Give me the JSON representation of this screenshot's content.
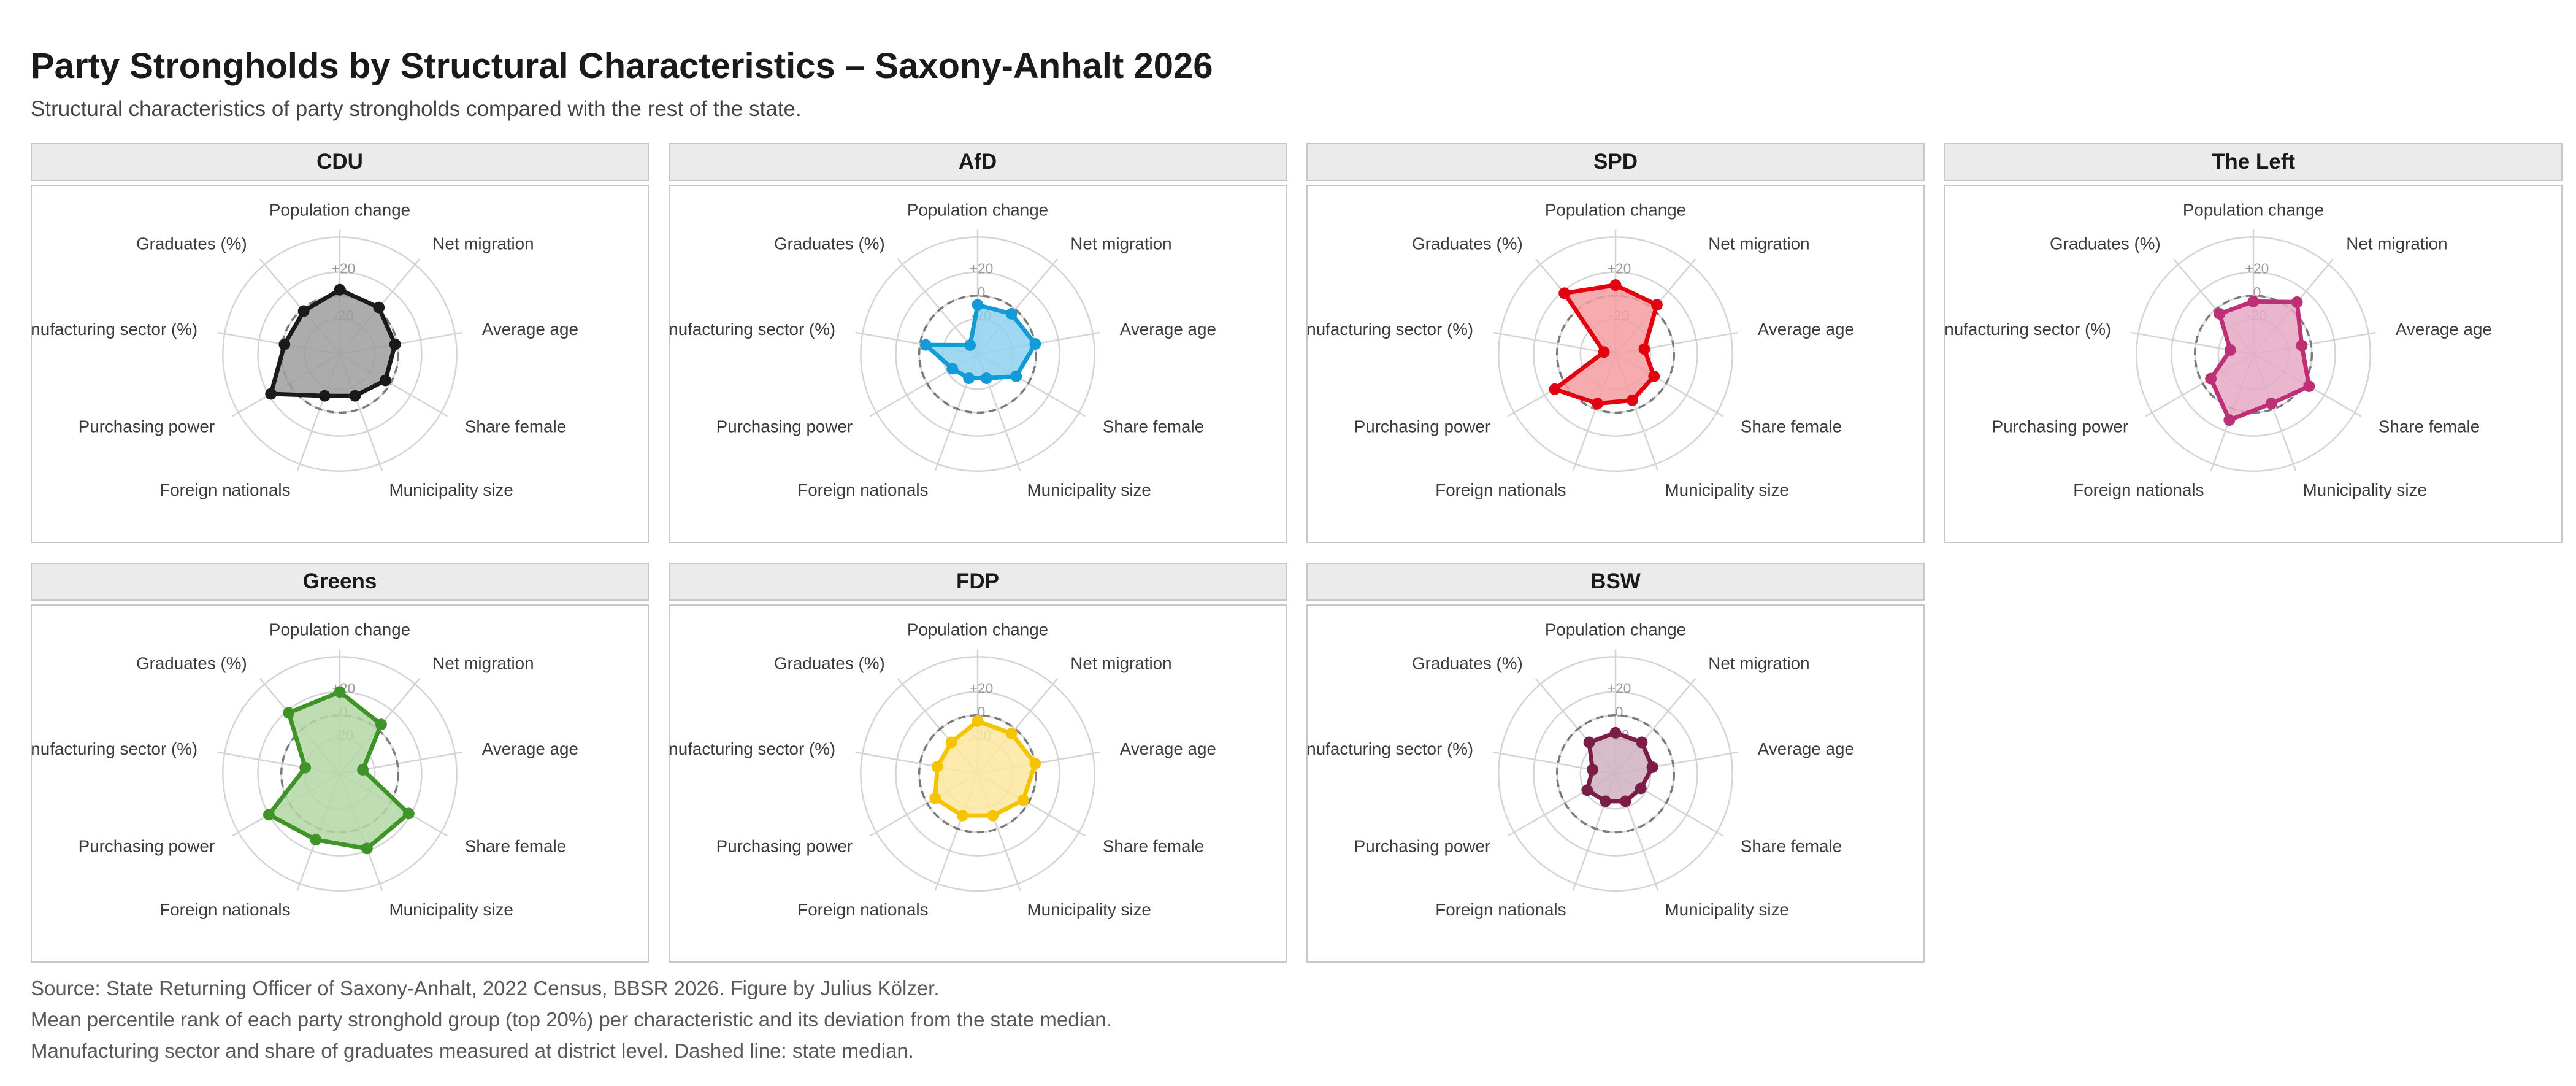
{
  "title": "Party Strongholds by Structural Characteristics – Saxony-Anhalt 2026",
  "subtitle": "Structural characteristics of party strongholds compared with the rest of the state.",
  "captions": [
    "Source: State Returning Officer of Saxony-Anhalt, 2022 Census, BBSR 2026. Figure by Julius Kölzer.",
    "Mean percentile rank of each party stronghold group (top 20%) per characteristic and its deviation from the state median.",
    "Manufacturing sector and share of graduates measured at district level. Dashed line: state median."
  ],
  "chart_data": {
    "type": "radar",
    "axes": [
      "Population change",
      "Net migration",
      "Average age",
      "Share female",
      "Municipality size",
      "Foreign nationals",
      "Purchasing power",
      "Manufacturing sector (%)",
      "Graduates (%)"
    ],
    "ring_labels": [
      "-20",
      "0",
      "+20"
    ],
    "range": [
      -50,
      50
    ],
    "reference_line": {
      "value": 0,
      "style": "dashed"
    },
    "series": [
      {
        "name": "CDU",
        "color": "#1a1a1a",
        "fill": "#9e9e9e",
        "values": [
          5,
          2,
          -2,
          -5,
          -12,
          -12,
          18,
          -2,
          -2
        ]
      },
      {
        "name": "AfD",
        "color": "#139ad8",
        "fill": "#8fd0ef",
        "values": [
          -8,
          -5,
          0,
          -12,
          -28,
          -28,
          -25,
          -5,
          -40
        ]
      },
      {
        "name": "SPD",
        "color": "#e3000f",
        "fill": "#f49ca0",
        "values": [
          9,
          5,
          -25,
          -12,
          -8,
          -5,
          10,
          -40,
          18
        ]
      },
      {
        "name": "The Left",
        "color": "#be3075",
        "fill": "#e5a9c6",
        "values": [
          -5,
          8,
          -8,
          5,
          -5,
          10,
          -8,
          -30,
          -5
        ]
      },
      {
        "name": "Greens",
        "color": "#3f9428",
        "fill": "#b4d7a6",
        "values": [
          20,
          5,
          -30,
          18,
          18,
          10,
          20,
          -20,
          18
        ]
      },
      {
        "name": "FDP",
        "color": "#f5c400",
        "fill": "#fbe89e",
        "values": [
          -5,
          -5,
          0,
          -5,
          -12,
          -12,
          -8,
          -15,
          -15
        ]
      },
      {
        "name": "BSW",
        "color": "#7a1e48",
        "fill": "#cfb2c0",
        "values": [
          -15,
          -15,
          -18,
          -25,
          -25,
          -25,
          -22,
          -30,
          -15
        ]
      }
    ]
  }
}
